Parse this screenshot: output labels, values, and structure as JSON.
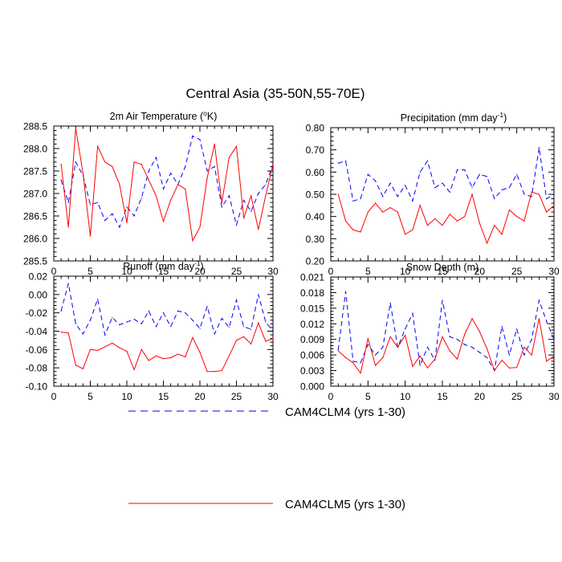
{
  "main_title": "Central Asia (35-50N,55-70E)",
  "colors": {
    "clm4": "#0000ff",
    "clm5": "#ff0000",
    "axis": "#000000"
  },
  "legend": {
    "items": [
      {
        "label": "CAM4CLM4 (yrs 1-30)",
        "style": "dashed",
        "color": "#0000ff"
      },
      {
        "label": "CAM4CLM5 (yrs 1-30)",
        "style": "solid",
        "color": "#ff0000"
      }
    ]
  },
  "chart_data": [
    {
      "type": "line",
      "title": "2m Air Temperature (",
      "title_sup": "o",
      "title_after": "K)",
      "xlabel": "",
      "ylabel": "",
      "x": [
        1,
        2,
        3,
        4,
        5,
        6,
        7,
        8,
        9,
        10,
        11,
        12,
        13,
        14,
        15,
        16,
        17,
        18,
        19,
        20,
        21,
        22,
        23,
        24,
        25,
        26,
        27,
        28,
        29,
        30
      ],
      "xlim": [
        0,
        30
      ],
      "ylim": [
        285.5,
        288.5
      ],
      "x_ticks": [
        0,
        5,
        10,
        15,
        20,
        25,
        30
      ],
      "x_tick_labels": [
        "0",
        "5",
        "10",
        "15",
        "20",
        "25",
        "30"
      ],
      "y_ticks": [
        285.5,
        286.0,
        286.5,
        287.0,
        287.5,
        288.0,
        288.5
      ],
      "y_tick_labels": [
        "285.5",
        "286.0",
        "286.5",
        "287.0",
        "287.5",
        "288.0",
        "288.5"
      ],
      "series": [
        {
          "name": "CAM4CLM4 (yrs 1-30)",
          "style": "dashed",
          "values": [
            287.3,
            286.8,
            287.7,
            287.4,
            286.75,
            286.8,
            286.4,
            286.55,
            286.25,
            286.7,
            286.5,
            286.9,
            287.5,
            287.8,
            287.1,
            287.45,
            287.2,
            287.6,
            288.28,
            288.2,
            287.5,
            287.6,
            286.7,
            286.95,
            286.3,
            286.85,
            286.6,
            287.0,
            287.2,
            287.65
          ]
        },
        {
          "name": "CAM4CLM5 (yrs 1-30)",
          "style": "solid",
          "values": [
            287.65,
            286.25,
            288.45,
            287.45,
            286.05,
            288.05,
            287.7,
            287.6,
            287.2,
            286.35,
            287.7,
            287.65,
            287.3,
            286.95,
            286.38,
            286.85,
            287.2,
            287.1,
            285.95,
            286.25,
            287.35,
            288.1,
            286.8,
            287.8,
            288.05,
            286.45,
            286.95,
            286.2,
            286.95,
            287.65
          ]
        }
      ]
    },
    {
      "type": "line",
      "title": "Precipitation (mm day",
      "title_sup": "-1",
      "title_after": ")",
      "xlabel": "",
      "ylabel": "",
      "x": [
        1,
        2,
        3,
        4,
        5,
        6,
        7,
        8,
        9,
        10,
        11,
        12,
        13,
        14,
        15,
        16,
        17,
        18,
        19,
        20,
        21,
        22,
        23,
        24,
        25,
        26,
        27,
        28,
        29,
        30
      ],
      "xlim": [
        0,
        30
      ],
      "ylim": [
        0.2,
        0.8
      ],
      "x_ticks": [
        0,
        5,
        10,
        15,
        20,
        25,
        30
      ],
      "x_tick_labels": [
        "0",
        "5",
        "10",
        "15",
        "20",
        "25",
        "30"
      ],
      "y_ticks": [
        0.2,
        0.3,
        0.4,
        0.5,
        0.6,
        0.7,
        0.8
      ],
      "y_tick_labels": [
        "0.20",
        "0.30",
        "0.40",
        "0.50",
        "0.60",
        "0.70",
        "0.80"
      ],
      "series": [
        {
          "name": "CAM4CLM4 (yrs 1-30)",
          "style": "dashed",
          "values": [
            0.64,
            0.65,
            0.47,
            0.48,
            0.59,
            0.56,
            0.49,
            0.55,
            0.49,
            0.54,
            0.47,
            0.6,
            0.65,
            0.53,
            0.55,
            0.51,
            0.61,
            0.61,
            0.53,
            0.59,
            0.58,
            0.48,
            0.52,
            0.53,
            0.59,
            0.5,
            0.49,
            0.71,
            0.48,
            0.5
          ]
        },
        {
          "name": "CAM4CLM5 (yrs 1-30)",
          "style": "solid",
          "values": [
            0.5,
            0.38,
            0.34,
            0.33,
            0.42,
            0.46,
            0.42,
            0.44,
            0.42,
            0.32,
            0.34,
            0.45,
            0.36,
            0.39,
            0.36,
            0.41,
            0.38,
            0.4,
            0.5,
            0.37,
            0.28,
            0.36,
            0.32,
            0.43,
            0.4,
            0.38,
            0.51,
            0.5,
            0.42,
            0.45
          ]
        }
      ]
    },
    {
      "type": "line",
      "title": "Runoff (mm day",
      "title_sup": "-1",
      "title_after": ")",
      "xlabel": "",
      "ylabel": "",
      "x": [
        1,
        2,
        3,
        4,
        5,
        6,
        7,
        8,
        9,
        10,
        11,
        12,
        13,
        14,
        15,
        16,
        17,
        18,
        19,
        20,
        21,
        22,
        23,
        24,
        25,
        26,
        27,
        28,
        29,
        30
      ],
      "xlim": [
        0,
        30
      ],
      "ylim": [
        -0.1,
        0.02
      ],
      "x_ticks": [
        0,
        5,
        10,
        15,
        20,
        25,
        30
      ],
      "x_tick_labels": [
        "0",
        "5",
        "10",
        "15",
        "20",
        "25",
        "30"
      ],
      "y_ticks": [
        -0.1,
        -0.08,
        -0.06,
        -0.04,
        -0.02,
        0.0,
        0.02
      ],
      "y_tick_labels": [
        "-0.10",
        "-0.08",
        "-0.06",
        "-0.04",
        "-0.02",
        "0.00",
        "0.02"
      ],
      "series": [
        {
          "name": "CAM4CLM4 (yrs 1-30)",
          "style": "dashed",
          "values": [
            -0.018,
            0.012,
            -0.032,
            -0.043,
            -0.028,
            -0.005,
            -0.044,
            -0.025,
            -0.033,
            -0.03,
            -0.027,
            -0.032,
            -0.018,
            -0.035,
            -0.02,
            -0.035,
            -0.018,
            -0.02,
            -0.028,
            -0.037,
            -0.013,
            -0.043,
            -0.026,
            -0.036,
            -0.006,
            -0.035,
            -0.038,
            0.0,
            -0.03,
            -0.04
          ]
        },
        {
          "name": "CAM4CLM5 (yrs 1-30)",
          "style": "solid",
          "values": [
            -0.041,
            -0.042,
            -0.077,
            -0.081,
            -0.06,
            -0.061,
            -0.057,
            -0.053,
            -0.058,
            -0.062,
            -0.082,
            -0.06,
            -0.072,
            -0.067,
            -0.07,
            -0.069,
            -0.065,
            -0.068,
            -0.047,
            -0.063,
            -0.084,
            -0.084,
            -0.083,
            -0.067,
            -0.05,
            -0.046,
            -0.054,
            -0.031,
            -0.051,
            -0.048
          ]
        }
      ]
    },
    {
      "type": "line",
      "title": "Snow Depth (m)",
      "title_sup": "",
      "title_after": "",
      "xlabel": "",
      "ylabel": "",
      "x": [
        1,
        2,
        3,
        4,
        5,
        6,
        7,
        8,
        9,
        10,
        11,
        12,
        13,
        14,
        15,
        16,
        17,
        18,
        19,
        20,
        21,
        22,
        23,
        24,
        25,
        26,
        27,
        28,
        29,
        30
      ],
      "xlim": [
        0,
        30
      ],
      "ylim": [
        0.0,
        0.021
      ],
      "x_ticks": [
        0,
        5,
        10,
        15,
        20,
        25,
        30
      ],
      "x_tick_labels": [
        "0",
        "5",
        "10",
        "15",
        "20",
        "25",
        "30"
      ],
      "y_ticks": [
        0.0,
        0.003,
        0.006,
        0.009,
        0.012,
        0.015,
        0.018,
        0.021
      ],
      "y_tick_labels": [
        "0.000",
        "0.003",
        "0.006",
        "0.009",
        "0.012",
        "0.015",
        "0.018",
        "0.021"
      ],
      "series": [
        {
          "name": "CAM4CLM4 (yrs 1-30)",
          "style": "dashed",
          "values": [
            0.007,
            0.0182,
            0.0048,
            0.0045,
            0.008,
            0.006,
            0.0075,
            0.016,
            0.0075,
            0.011,
            0.014,
            0.004,
            0.0075,
            0.005,
            0.0165,
            0.0095,
            0.009,
            0.008,
            0.0075,
            0.0065,
            0.0055,
            0.003,
            0.0115,
            0.006,
            0.011,
            0.006,
            0.009,
            0.0165,
            0.0125,
            0.009
          ]
        },
        {
          "name": "CAM4CLM5 (yrs 1-30)",
          "style": "solid",
          "values": [
            0.0068,
            0.0055,
            0.0045,
            0.0025,
            0.0092,
            0.004,
            0.0055,
            0.0095,
            0.0075,
            0.0098,
            0.0038,
            0.0058,
            0.0035,
            0.0052,
            0.0095,
            0.0068,
            0.0052,
            0.01,
            0.013,
            0.0105,
            0.0072,
            0.003,
            0.005,
            0.0035,
            0.0036,
            0.0075,
            0.006,
            0.013,
            0.0048,
            0.0058
          ]
        }
      ]
    }
  ]
}
